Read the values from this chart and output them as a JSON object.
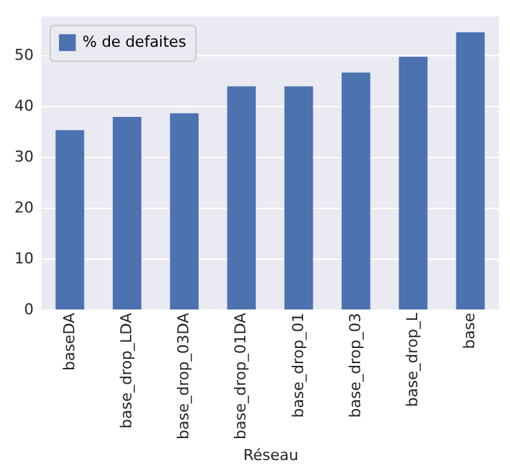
{
  "chart_data": {
    "type": "bar",
    "xlabel": "Réseau",
    "categories": [
      "baseDA",
      "base_drop_LDA",
      "base_drop_03DA",
      "base_drop_01DA",
      "base_drop_01",
      "base_drop_03",
      "base_drop_L",
      "base"
    ],
    "series": [
      {
        "name": "% de defaites",
        "color": "#4c72b0",
        "values": [
          35.2,
          37.8,
          38.5,
          43.8,
          43.8,
          46.5,
          49.6,
          54.4
        ]
      }
    ],
    "ylim": [
      0,
      57.5
    ],
    "yticks": [
      0,
      10,
      20,
      30,
      40,
      50
    ],
    "grid": "y",
    "legend": "top left"
  }
}
